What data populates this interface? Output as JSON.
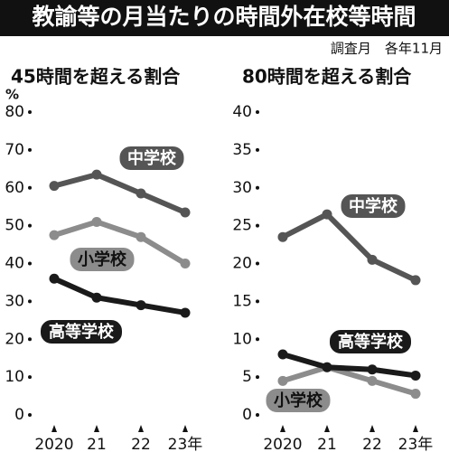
{
  "title": "教諭等の月当たりの時間外在校等時間",
  "note": "調査月　各年11月",
  "chart_data": [
    {
      "type": "line",
      "title": "45時間を超える割合",
      "unit": "%",
      "categories": [
        "2020",
        "21",
        "22",
        "23年"
      ],
      "ylim": [
        0,
        80
      ],
      "yticks": [
        0,
        10,
        20,
        30,
        40,
        50,
        60,
        70,
        80
      ],
      "series": [
        {
          "name": "中学校",
          "color": "#555555",
          "values": [
            60.5,
            63.5,
            58.5,
            53.5
          ]
        },
        {
          "name": "小学校",
          "color": "#8c8c8c",
          "values": [
            47.5,
            51,
            47,
            40
          ]
        },
        {
          "name": "高等学校",
          "color": "#1a1a1a",
          "values": [
            36,
            31,
            29,
            27
          ]
        }
      ]
    },
    {
      "type": "line",
      "title": "80時間を超える割合",
      "categories": [
        "2020",
        "21",
        "22",
        "23年"
      ],
      "ylim": [
        0,
        40
      ],
      "yticks": [
        0,
        5,
        10,
        15,
        20,
        25,
        30,
        35,
        40
      ],
      "series": [
        {
          "name": "中学校",
          "color": "#555555",
          "values": [
            23.5,
            26.5,
            20.5,
            17.8
          ]
        },
        {
          "name": "小学校",
          "color": "#8c8c8c",
          "values": [
            4.5,
            6.3,
            4.5,
            2.8
          ]
        },
        {
          "name": "高等学校",
          "color": "#1a1a1a",
          "values": [
            8,
            6.3,
            6,
            5.2
          ]
        }
      ]
    }
  ]
}
